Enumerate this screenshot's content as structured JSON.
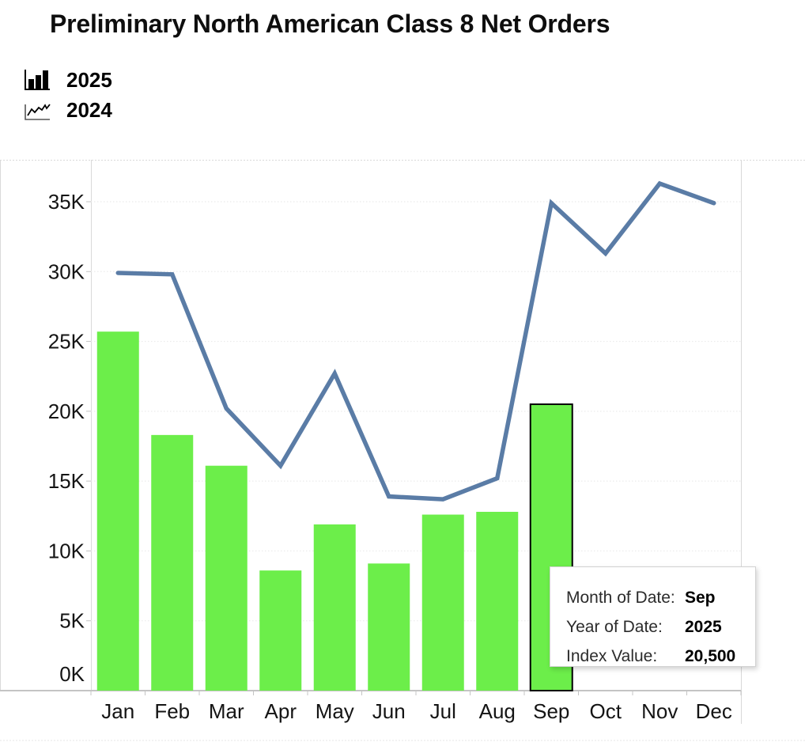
{
  "title": "Preliminary North American Class 8 Net Orders",
  "legend": {
    "items": [
      {
        "label": "2025",
        "icon": "bar-chart-icon"
      },
      {
        "label": "2024",
        "icon": "line-chart-icon"
      }
    ]
  },
  "tooltip": {
    "rows": [
      {
        "label": "Month of Date:",
        "value": "Sep"
      },
      {
        "label": "Year of Date:",
        "value": "2025"
      },
      {
        "label": "Index Value:",
        "value": "20,500"
      }
    ]
  },
  "colors": {
    "bar": "#6CEE4A",
    "line": "#5A7CA6",
    "grid": "#ebebeb",
    "axis_border": "#c4c4c4",
    "pane_border": "#d9d9d9",
    "highlight_border": "#000000",
    "axis_text": "#141414"
  },
  "chart_data": {
    "type": "combo",
    "title": "Preliminary North American Class 8 Net Orders",
    "categories": [
      "Jan",
      "Feb",
      "Mar",
      "Apr",
      "May",
      "Jun",
      "Jul",
      "Aug",
      "Sep",
      "Oct",
      "Nov",
      "Dec"
    ],
    "series": [
      {
        "name": "2025",
        "type": "bar",
        "values": [
          25700,
          18300,
          16100,
          8600,
          11900,
          9100,
          12600,
          12800,
          20500,
          null,
          null,
          null
        ]
      },
      {
        "name": "2024",
        "type": "line",
        "values": [
          29900,
          29800,
          20200,
          16100,
          22700,
          13900,
          13700,
          15200,
          34900,
          31300,
          36300,
          34900
        ]
      }
    ],
    "highlighted": {
      "series": "2025",
      "category": "Sep",
      "value": 20500
    },
    "y_axis": {
      "min": 0,
      "max": 38000,
      "tick_interval": 5000,
      "tick_labels": [
        "0K",
        "5K",
        "10K",
        "15K",
        "20K",
        "25K",
        "30K",
        "35K"
      ]
    },
    "xlabel": "",
    "ylabel": "",
    "grid": true,
    "legend_position": "top-left"
  }
}
